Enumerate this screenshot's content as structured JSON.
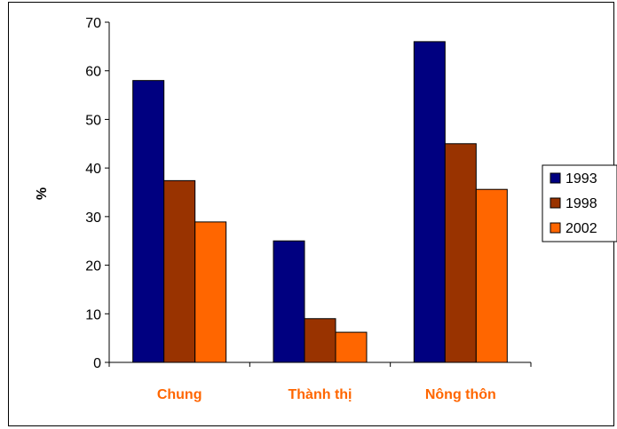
{
  "chart_data": {
    "type": "bar",
    "categories": [
      "Chung",
      "Thành thị",
      "Nông thôn"
    ],
    "series": [
      {
        "name": "1993",
        "values": [
          58,
          25,
          66
        ],
        "color": "#000080"
      },
      {
        "name": "1998",
        "values": [
          37.4,
          9,
          45
        ],
        "color": "#993300"
      },
      {
        "name": "2002",
        "values": [
          28.9,
          6.2,
          35.6
        ],
        "color": "#FF6600"
      }
    ],
    "title": "",
    "xlabel": "",
    "ylabel": "%",
    "ylim": [
      0,
      70
    ],
    "yticks": [
      0,
      10,
      20,
      30,
      40,
      50,
      60,
      70
    ],
    "grid": false,
    "legend": "right",
    "category_label_color": "#FF6600"
  }
}
